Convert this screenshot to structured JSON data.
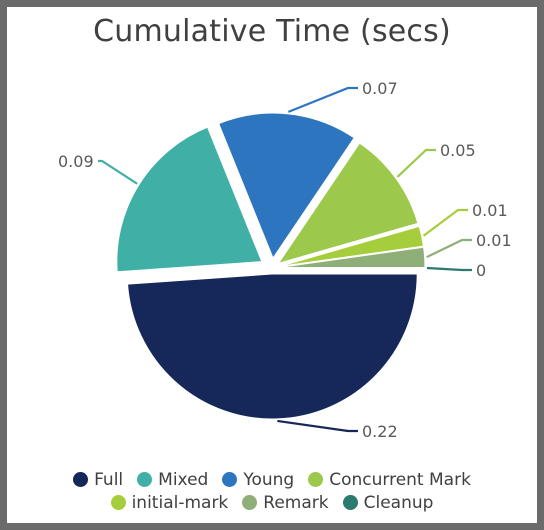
{
  "chart_data": {
    "type": "pie",
    "title": "Cumulative Time (secs)",
    "series": [
      {
        "name": "Full",
        "value": 0.22,
        "label": "0.22",
        "color": "#16275a"
      },
      {
        "name": "Mixed",
        "value": 0.09,
        "label": "0.09",
        "color": "#40b0a6"
      },
      {
        "name": "Young",
        "value": 0.07,
        "label": "0.07",
        "color": "#2e75bf"
      },
      {
        "name": "Concurrent Mark",
        "value": 0.05,
        "label": "0.05",
        "color": "#9cc94c"
      },
      {
        "name": "initial-mark",
        "value": 0.01,
        "label": "0.01",
        "color": "#a6cd3c"
      },
      {
        "name": "Remark",
        "value": 0.01,
        "label": "0.01",
        "color": "#8faf78"
      },
      {
        "name": "Cleanup",
        "value": 0,
        "label": "0",
        "color": "#2b7a6e"
      }
    ],
    "legend": {
      "position": "bottom",
      "rows": [
        [
          "Full",
          "Mixed",
          "Young",
          "Concurrent Mark"
        ],
        [
          "initial-mark",
          "Remark",
          "Cleanup"
        ]
      ]
    }
  }
}
